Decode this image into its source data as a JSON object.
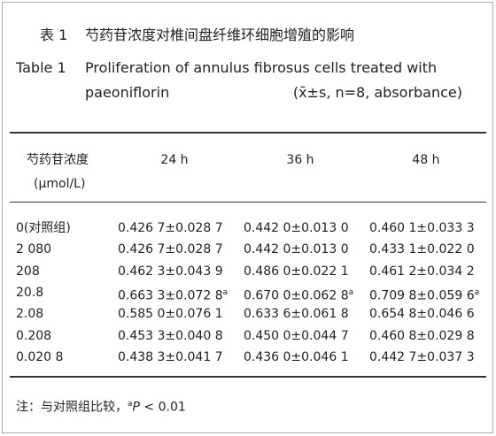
{
  "title_cn": {
    "label": "表 1",
    "text": "芍药苷浓度对椎间盘纤维环细胞增殖的影响"
  },
  "title_en": {
    "label": "Table 1",
    "text_line1": "Proliferation of annulus fibrosus cells treated with",
    "text_line2": "paeoniflorin",
    "subtitle": "(x̄±s, n=8, absorbance)"
  },
  "table": {
    "header": {
      "first": [
        "芍药苷浓度",
        "(μmol/L)"
      ],
      "columns": [
        "24 h",
        "36 h",
        "48 h"
      ]
    },
    "rows": [
      [
        {
          "text": "0(对照组)"
        },
        {
          "text": "0.426 7±0.028 7"
        },
        {
          "text": "0.442 0±0.013 0"
        },
        {
          "text": "0.460 1±0.033 3"
        }
      ],
      [
        {
          "text": "2 080"
        },
        {
          "text": "0.426 7±0.028 7"
        },
        {
          "text": "0.442 0±0.013 0"
        },
        {
          "text": "0.433 1±0.022 0"
        }
      ],
      [
        {
          "text": "208"
        },
        {
          "text": "0.462 3±0.043 9"
        },
        {
          "text": "0.486 0±0.022 1"
        },
        {
          "text": "0.461 2±0.034 2"
        }
      ],
      [
        {
          "text": "20.8"
        },
        {
          "text": "0.663 3±0.072 8",
          "sup": "a"
        },
        {
          "text": "0.670 0±0.062 8",
          "sup": "a"
        },
        {
          "text": "0.709 8±0.059 6",
          "sup": "a"
        }
      ],
      [
        {
          "text": "2.08"
        },
        {
          "text": "0.585 0±0.076 1"
        },
        {
          "text": "0.633 6±0.061 8"
        },
        {
          "text": "0.654 8±0.046 6"
        }
      ],
      [
        {
          "text": "0.208"
        },
        {
          "text": "0.453 3±0.040 8"
        },
        {
          "text": "0.450 0±0.044 7"
        },
        {
          "text": "0.460 8±0.029 8"
        }
      ],
      [
        {
          "text": "0.020 8"
        },
        {
          "text": "0.438 3±0.041 7"
        },
        {
          "text": "0.436 0±0.046 1"
        },
        {
          "text": "0.442 7±0.037 3"
        }
      ]
    ]
  },
  "note": {
    "prefix": "注：与对照组比较，",
    "sup": "a",
    "italic": "P",
    "suffix": " < 0.01"
  }
}
